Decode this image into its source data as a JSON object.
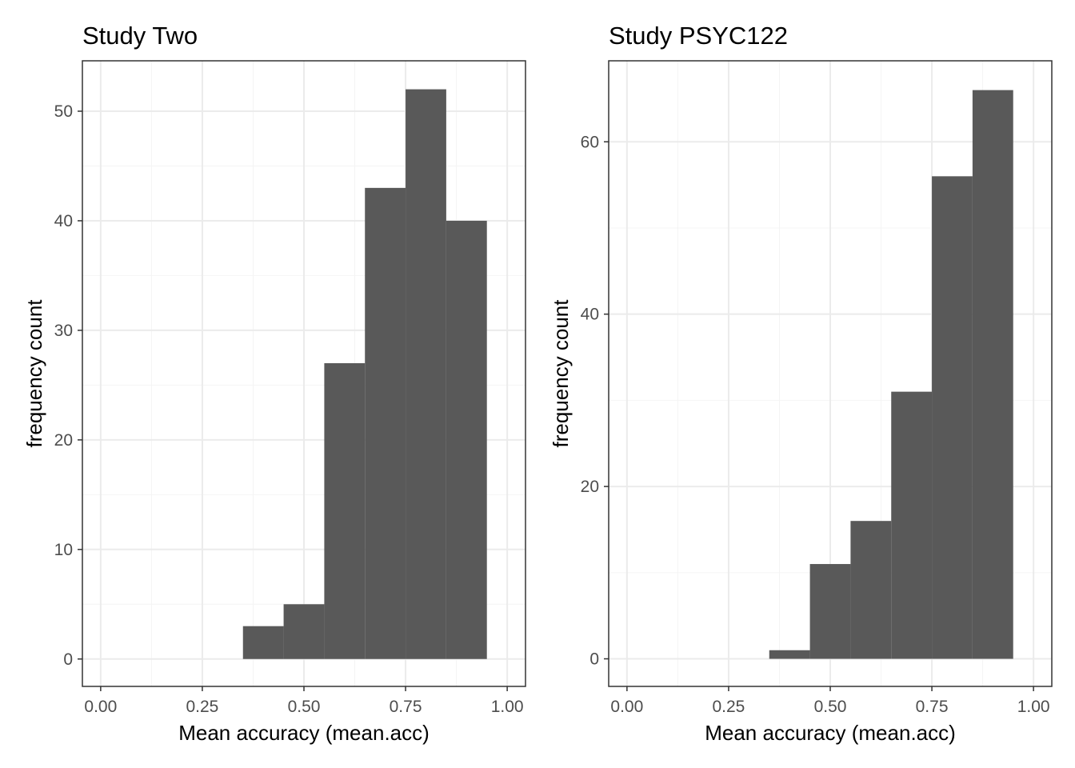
{
  "chart_data": [
    {
      "type": "bar",
      "title": "Study Two",
      "xlabel": "Mean accuracy (mean.acc)",
      "ylabel": "frequency count",
      "xlim": [
        -0.045,
        1.045
      ],
      "ylim": [
        -2.5,
        54.6
      ],
      "xticks": [
        0,
        0.25,
        0.5,
        0.75,
        1
      ],
      "xtick_labels": [
        "0.00",
        "0.25",
        "0.50",
        "0.75",
        "1.00"
      ],
      "yticks": [
        0,
        10,
        20,
        30,
        40,
        50
      ],
      "ytick_labels": [
        "0",
        "10",
        "20",
        "30",
        "40",
        "50"
      ],
      "bin_width": 0.1,
      "bins": [
        0.4,
        0.5,
        0.6,
        0.7,
        0.8,
        0.9
      ],
      "values": [
        3,
        5,
        27,
        43,
        52,
        40
      ],
      "bar_color": "#595959"
    },
    {
      "type": "bar",
      "title": "Study PSYC122",
      "xlabel": "Mean accuracy (mean.acc)",
      "ylabel": "frequency count",
      "xlim": [
        -0.045,
        1.045
      ],
      "ylim": [
        -3.2,
        69.4
      ],
      "xticks": [
        0,
        0.25,
        0.5,
        0.75,
        1
      ],
      "xtick_labels": [
        "0.00",
        "0.25",
        "0.50",
        "0.75",
        "1.00"
      ],
      "yticks": [
        0,
        20,
        40,
        60
      ],
      "ytick_labels": [
        "0",
        "20",
        "40",
        "60"
      ],
      "bin_width": 0.1,
      "bins": [
        0.4,
        0.5,
        0.6,
        0.7,
        0.8,
        0.9
      ],
      "values": [
        1,
        11,
        16,
        31,
        56,
        66
      ],
      "bar_color": "#595959"
    }
  ]
}
